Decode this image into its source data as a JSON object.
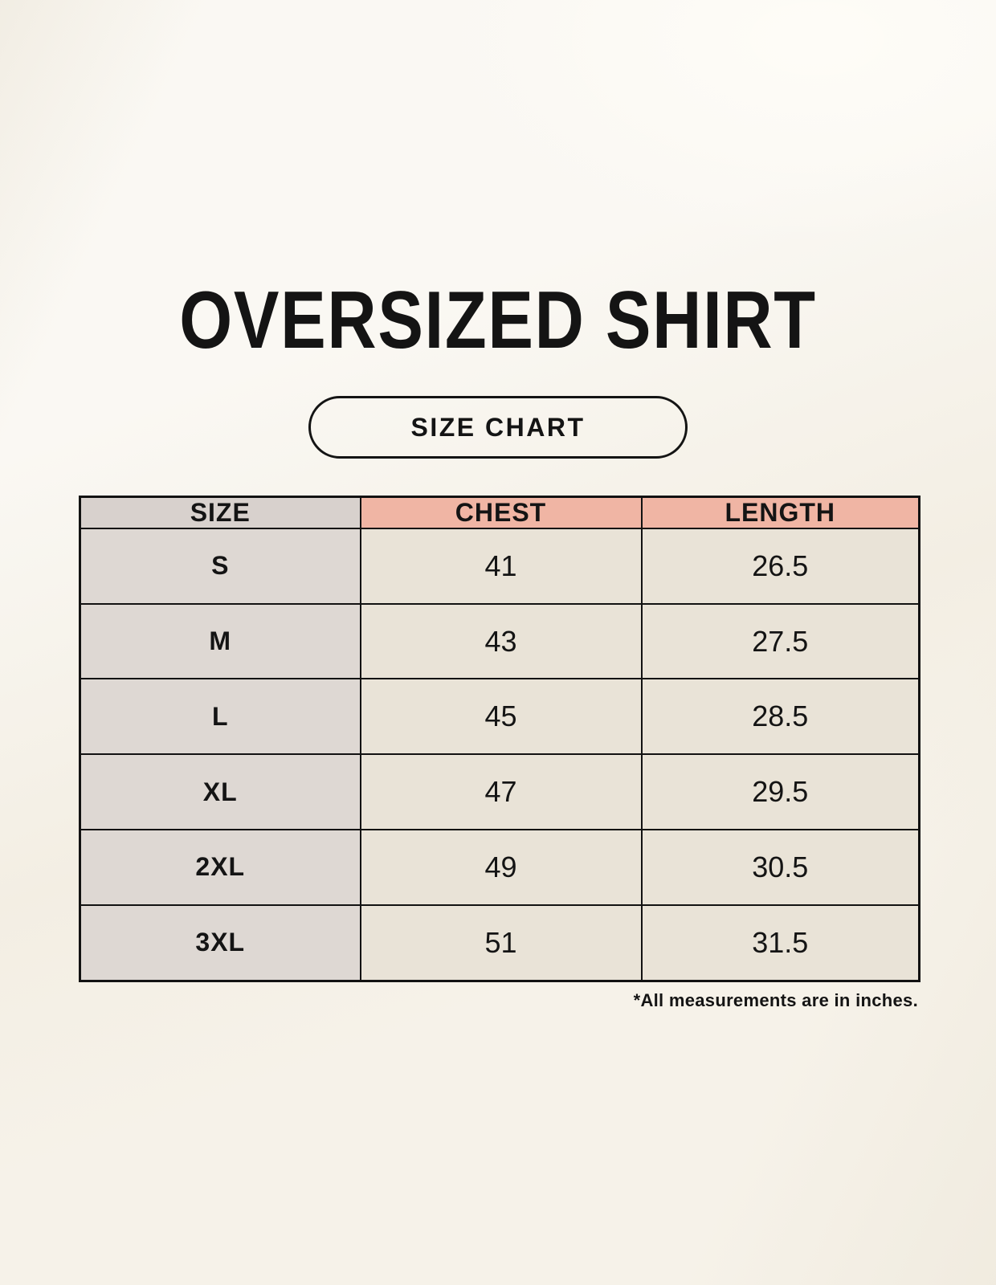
{
  "page": {
    "title": "OVERSIZED SHIRT",
    "badge_label": "SIZE CHART",
    "footnote": "*All measurements are in inches."
  },
  "chart_data": {
    "type": "table",
    "title": "OVERSIZED SHIRT",
    "subtitle": "SIZE CHART",
    "columns": [
      "SIZE",
      "CHEST",
      "LENGTH"
    ],
    "rows": [
      [
        "S",
        "41",
        "26.5"
      ],
      [
        "M",
        "43",
        "27.5"
      ],
      [
        "L",
        "45",
        "28.5"
      ],
      [
        "XL",
        "47",
        "29.5"
      ],
      [
        "2XL",
        "49",
        "30.5"
      ],
      [
        "3XL",
        "51",
        "31.5"
      ]
    ],
    "note": "*All measurements are in inches.",
    "units": "inches"
  },
  "colors": {
    "background": "#f6f2e9",
    "text": "#141414",
    "table_border": "#121212",
    "header_size_bg": "#d8d1cd",
    "header_measure_bg": "#f0b5a4",
    "row_size_bg": "#ded8d3",
    "row_value_bg": "#e9e3d7"
  }
}
